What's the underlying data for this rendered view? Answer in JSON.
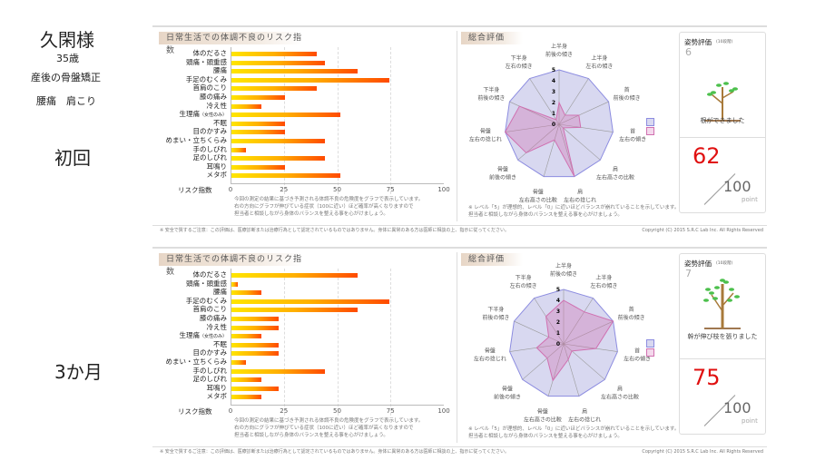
{
  "client": {
    "name": "久閑様",
    "age": "35歳",
    "program": "産後の骨盤矯正",
    "complaints": "腰痛　肩こり"
  },
  "colors": {
    "bar_start": "#ffe600",
    "bar_end": "#ff4a00",
    "radar_ideal": "#8c8ce0",
    "radar_actual": "#d070b0",
    "score": "#e01010"
  },
  "common": {
    "risk_title": "日常生活での体調不良のリスク指数",
    "risk_axis_label": "リスク指数",
    "risk_note": [
      "今回の測定の結果に基づき予測される体調不良の危険度をグラフで表示しています。",
      "右の方向にグラフが伸びている症状（100に近い）ほど確率が高くなりますので",
      "担当者と相談しながら身体のバランスを整える事を心がけましょう。"
    ],
    "radar_title": "総合評価",
    "radar_note": [
      "※ レベル「5」が理想的、レベル「0」に近いほどバランスが崩れていることを示しています。",
      "担当者と相談しながら身体のバランスを整える事を心がけましょう。"
    ],
    "posture_title": "姿勢評価",
    "posture_scale": "(10段階)",
    "score_max": "100",
    "score_unit": "point",
    "footer_notice": "※ 安全で質するご注意：この評価は、医療診断または治療行為として認定されているものではありません。身体に異常のある方は医師に相談の上、指示に従ってください。",
    "copyright": "Copyright (C) 2015 S.R.C Lab Inc. All Rights Reserved",
    "categories": [
      "体のだるさ",
      "頭痛・頭重感",
      "腰痛",
      "手足のむくみ",
      "首肩のこり",
      "膝の痛み",
      "冷え性",
      "生理痛",
      "不眠",
      "目のかすみ",
      "めまい・立ちくらみ",
      "手のしびれ",
      "足のしびれ",
      "耳鳴り",
      "メタボ"
    ],
    "category_sub": {
      "7": "（女性のみ）"
    },
    "ticks": [
      "0",
      "25",
      "50",
      "75",
      "100"
    ],
    "radar_scale": [
      "0",
      "1",
      "2",
      "3",
      "4",
      "5"
    ],
    "radar_axes": [
      [
        "上半身",
        "前後の傾き"
      ],
      [
        "上半身",
        "左右の傾き"
      ],
      [
        "首",
        "前後の傾き"
      ],
      [
        "首",
        "左右の傾き"
      ],
      [
        "肩",
        "左右高さの比較"
      ],
      [
        "肩",
        "左右の捻じれ"
      ],
      [
        "骨盤",
        "左右高さの比較"
      ],
      [
        "骨盤",
        "前後の傾き"
      ],
      [
        "骨盤",
        "左右の捻じれ"
      ],
      [
        "下半身",
        "前後の傾き"
      ],
      [
        "下半身",
        "左右の傾き"
      ]
    ]
  },
  "chart_data": [
    {
      "type": "bar",
      "title": "日常生活での体調不良のリスク指数",
      "session": "初回",
      "xlim": [
        0,
        100
      ],
      "values": [
        40,
        44,
        59,
        74,
        40,
        25,
        14,
        51,
        25,
        25,
        44,
        7,
        44,
        25,
        51
      ]
    },
    {
      "type": "radar",
      "title": "総合評価",
      "session": "初回",
      "rlim": [
        0,
        5
      ],
      "series": [
        {
          "name": "ideal",
          "values": [
            5,
            5,
            5,
            5,
            5,
            5,
            5,
            5,
            5,
            5,
            5
          ]
        },
        {
          "name": "actual",
          "values": [
            2,
            1,
            2,
            2,
            0.5,
            5,
            1.5,
            4,
            5,
            4,
            0.5
          ]
        }
      ]
    },
    {
      "type": "bar",
      "title": "日常生活での体調不良のリスク指数",
      "session": "3か月",
      "xlim": [
        0,
        100
      ],
      "values": [
        59,
        3,
        14,
        74,
        59,
        22,
        22,
        14,
        22,
        22,
        7,
        44,
        14,
        22,
        14
      ]
    },
    {
      "type": "radar",
      "title": "総合評価",
      "session": "3か月",
      "rlim": [
        0,
        5
      ],
      "series": [
        {
          "name": "ideal",
          "values": [
            5,
            5,
            5,
            5,
            5,
            5,
            5,
            5,
            5,
            5,
            5
          ]
        },
        {
          "name": "actual",
          "values": [
            4,
            3.5,
            5,
            3,
            1,
            1.5,
            3.5,
            2,
            2.5,
            1.5,
            3
          ]
        }
      ]
    }
  ],
  "sessions": [
    {
      "label": "初回",
      "posture_level": "6",
      "posture_message": "根ができました",
      "score": "62"
    },
    {
      "label": "3か月",
      "posture_level": "7",
      "posture_message": "幹が伸び枝を張りました",
      "score": "75"
    }
  ]
}
